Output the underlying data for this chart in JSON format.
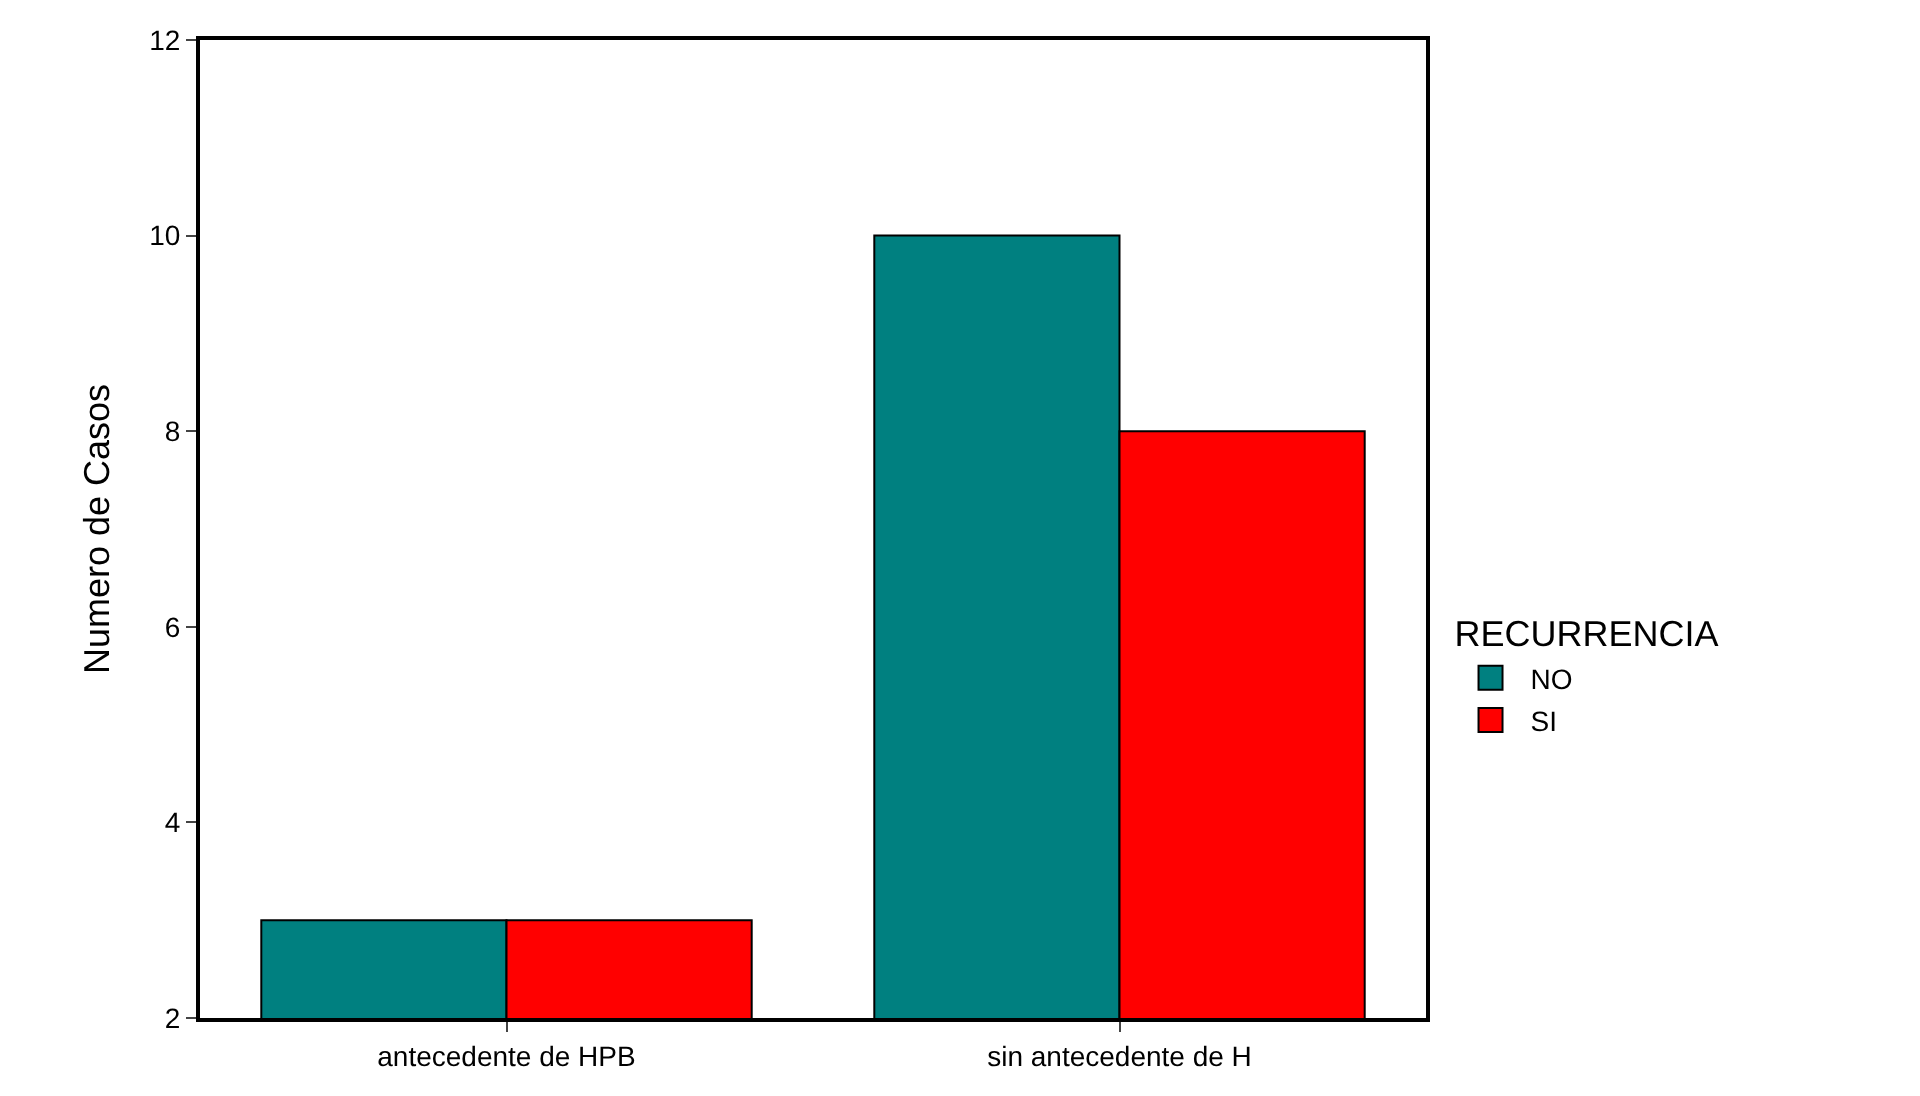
{
  "chart_data": {
    "type": "bar",
    "ylabel": "Numero de Casos",
    "legend_title": "RECURRENCIA",
    "categories": [
      "antecedente de HPB",
      "sin antecedente de H"
    ],
    "series": [
      {
        "name": "NO",
        "color": "#008080",
        "values": [
          3,
          10
        ]
      },
      {
        "name": "SI",
        "color": "#ff0000",
        "values": [
          3,
          8
        ]
      }
    ],
    "ylim": [
      2,
      12
    ],
    "yticks": [
      2,
      4,
      6,
      8,
      10,
      12
    ],
    "legend": "right"
  }
}
